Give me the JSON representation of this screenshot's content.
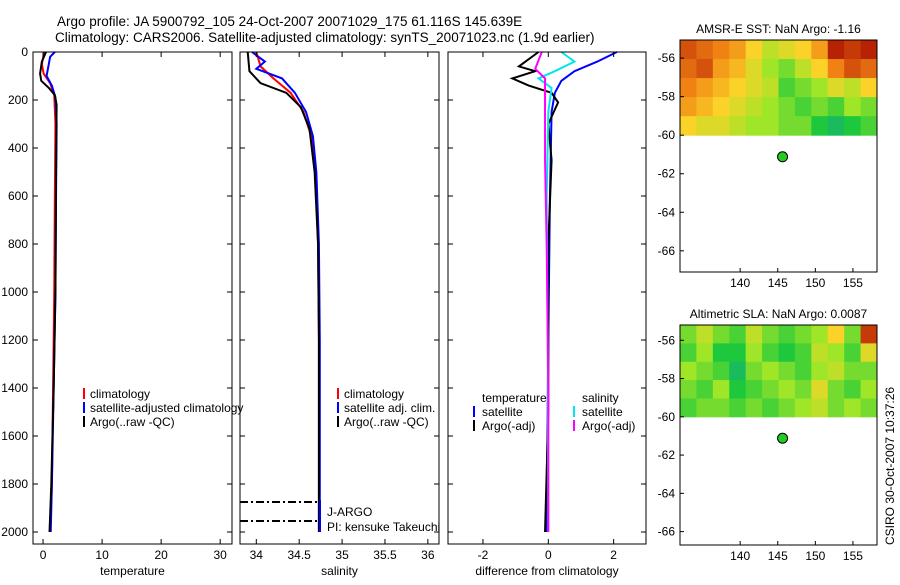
{
  "title_line1": "Argo profile: JA 5900792_105 24-Oct-2007 20071029_175 61.116S 145.639E",
  "title_line2": "Climatology: CARS2006. Satellite-adjusted climatology: synTS_20071023.nc (1.9d earlier)",
  "footer_stamp": "CSIRO 30-Oct-2007 10:37:26",
  "float_info": {
    "program": "J-ARGO",
    "pi": "PI: kensuke Takeuchi"
  },
  "colors": {
    "climatology": "#ff0000",
    "satellite": "#0000ff",
    "argo": "#000000",
    "sal_satellite": "#00e5ee",
    "sal_argo": "#ff00ff",
    "dot": "#22cc22"
  },
  "chart_data": [
    {
      "type": "line",
      "name": "temperature",
      "xlabel": "temperature",
      "ylabel": "depth",
      "xlim": [
        -1.7,
        32
      ],
      "ylim": [
        2050,
        0
      ],
      "xticks": [
        "0",
        "10",
        "20",
        "30"
      ],
      "xtick_values": [
        0,
        10,
        20,
        30
      ],
      "yticks": [
        "0",
        "200",
        "400",
        "600",
        "800",
        "1000",
        "1200",
        "1400",
        "1600",
        "1800",
        "2000"
      ],
      "legend": [
        "climatology",
        "satellite-adjusted climatology",
        "Argo(..raw -QC)"
      ],
      "series": [
        {
          "name": "climatology",
          "color": "#ff0000",
          "points": [
            [
              0.2,
              0
            ],
            [
              -0.2,
              50
            ],
            [
              0.1,
              90
            ],
            [
              1.2,
              130
            ],
            [
              1.9,
              180
            ],
            [
              2.1,
              300
            ],
            [
              2.0,
              600
            ],
            [
              1.9,
              1000
            ],
            [
              1.7,
              1400
            ],
            [
              1.5,
              1800
            ],
            [
              1.4,
              1870
            ]
          ]
        },
        {
          "name": "satellite-adjusted climatology",
          "color": "#0000ff",
          "points": [
            [
              2.0,
              0
            ],
            [
              1.2,
              20
            ],
            [
              0.9,
              60
            ],
            [
              0.6,
              100
            ],
            [
              1.5,
              140
            ],
            [
              2.1,
              190
            ],
            [
              2.3,
              300
            ],
            [
              2.2,
              600
            ],
            [
              2.1,
              1000
            ],
            [
              1.8,
              1400
            ],
            [
              1.5,
              1800
            ],
            [
              1.3,
              2000
            ]
          ]
        },
        {
          "name": "Argo(..raw -QC)",
          "color": "#000000",
          "points": [
            [
              0.5,
              0
            ],
            [
              -0.2,
              40
            ],
            [
              -0.5,
              90
            ],
            [
              -0.3,
              120
            ],
            [
              1.0,
              150
            ],
            [
              2.0,
              180
            ],
            [
              2.3,
              220
            ],
            [
              2.2,
              500
            ],
            [
              2.1,
              1000
            ],
            [
              1.8,
              1400
            ],
            [
              1.4,
              1800
            ],
            [
              1.1,
              2000
            ]
          ]
        }
      ]
    },
    {
      "type": "line",
      "name": "salinity",
      "xlabel": "salinity",
      "ylabel": "",
      "xlim": [
        33.81,
        36.13
      ],
      "ylim": [
        2050,
        0
      ],
      "xticks": [
        "34",
        "34.5",
        "35",
        "35.5",
        "36"
      ],
      "xtick_values": [
        34,
        34.5,
        35,
        35.5,
        36
      ],
      "legend": [
        "climatology",
        "satellite adj. clim.",
        "Argo(..raw -QC)"
      ],
      "series": [
        {
          "name": "climatology",
          "color": "#ff0000",
          "points": [
            [
              34.0,
              0
            ],
            [
              34.05,
              60
            ],
            [
              34.2,
              110
            ],
            [
              34.4,
              170
            ],
            [
              34.55,
              250
            ],
            [
              34.64,
              350
            ],
            [
              34.69,
              500
            ],
            [
              34.72,
              800
            ],
            [
              34.73,
              1200
            ],
            [
              34.73,
              2000
            ]
          ]
        },
        {
          "name": "satellite adj. clim.",
          "color": "#0000ff",
          "points": [
            [
              33.95,
              0
            ],
            [
              34.1,
              40
            ],
            [
              34.0,
              70
            ],
            [
              34.3,
              110
            ],
            [
              34.45,
              170
            ],
            [
              34.58,
              250
            ],
            [
              34.66,
              350
            ],
            [
              34.7,
              500
            ],
            [
              34.73,
              800
            ],
            [
              34.74,
              1200
            ],
            [
              34.74,
              2000
            ]
          ]
        },
        {
          "name": "Argo(..raw -QC)",
          "color": "#000000",
          "points": [
            [
              33.9,
              0
            ],
            [
              33.92,
              80
            ],
            [
              34.05,
              130
            ],
            [
              34.35,
              170
            ],
            [
              34.52,
              230
            ],
            [
              34.62,
              320
            ],
            [
              34.68,
              500
            ],
            [
              34.72,
              800
            ],
            [
              34.73,
              1200
            ],
            [
              34.73,
              2000
            ]
          ]
        }
      ]
    },
    {
      "type": "line",
      "name": "difference",
      "xlabel": "difference from climatology",
      "ylabel": "",
      "xlim": [
        -3.07,
        2.99
      ],
      "ylim": [
        2050,
        0
      ],
      "xticks": [
        "-2",
        "0",
        "2"
      ],
      "xtick_values": [
        -2,
        0,
        2
      ],
      "legend_headers": [
        "temperature",
        "salinity"
      ],
      "legend": [
        "satellite",
        "Argo(-adj)",
        "satellite",
        "Argo(-adj)"
      ],
      "series": [
        {
          "name": "temperature satellite",
          "color": "#0000ff",
          "points": [
            [
              2.1,
              0
            ],
            [
              1.5,
              40
            ],
            [
              0.8,
              80
            ],
            [
              0.4,
              120
            ],
            [
              0.2,
              170
            ],
            [
              0.1,
              250
            ],
            [
              0.05,
              600
            ],
            [
              0.0,
              1200
            ],
            [
              -0.05,
              2000
            ]
          ]
        },
        {
          "name": "temperature Argo(-adj)",
          "color": "#000000",
          "points": [
            [
              -0.3,
              0
            ],
            [
              -0.9,
              60
            ],
            [
              -0.4,
              80
            ],
            [
              -1.1,
              110
            ],
            [
              -0.6,
              140
            ],
            [
              0.1,
              170
            ],
            [
              0.3,
              210
            ],
            [
              0.0,
              300
            ],
            [
              0.1,
              450
            ],
            [
              0.0,
              800
            ],
            [
              0.0,
              1500
            ],
            [
              -0.1,
              2000
            ]
          ]
        },
        {
          "name": "salinity satellite",
          "color": "#00e5ee",
          "points": [
            [
              0.4,
              0
            ],
            [
              0.8,
              40
            ],
            [
              0.2,
              80
            ],
            [
              -0.3,
              110
            ],
            [
              0.1,
              150
            ],
            [
              0.0,
              250
            ],
            [
              -0.05,
              600
            ],
            [
              -0.02,
              1200
            ],
            [
              0.0,
              2000
            ]
          ]
        },
        {
          "name": "salinity Argo(-adj)",
          "color": "#ff00ff",
          "points": [
            [
              -0.2,
              0
            ],
            [
              -0.4,
              70
            ],
            [
              -0.1,
              110
            ],
            [
              -0.1,
              200
            ],
            [
              -0.1,
              450
            ],
            [
              -0.05,
              800
            ],
            [
              0.0,
              1400
            ],
            [
              0.0,
              2000
            ]
          ]
        }
      ]
    },
    {
      "type": "heatmap",
      "name": "sst-map",
      "title": "AMSR-E SST: NaN Argo: -1.16",
      "xlim": [
        132,
        158.2
      ],
      "ylim": [
        -67.1,
        -55.06
      ],
      "data_lat_range": [
        -60,
        -55.06
      ],
      "xticks": [
        "140",
        "145",
        "150",
        "155"
      ],
      "xtick_values": [
        140,
        145,
        150,
        155
      ],
      "yticks": [
        "-56",
        "-58",
        "-60",
        "-62",
        "-64",
        "-66"
      ],
      "ytick_values": [
        -56,
        -58,
        -60,
        -62,
        -64,
        -66
      ],
      "marker": {
        "lon": 145.64,
        "lat": -61.12
      },
      "grid": [
        [
          0.85,
          0.8,
          0.75,
          0.7,
          0.6,
          0.5,
          0.55,
          0.6,
          0.7,
          0.95,
          0.9,
          0.95
        ],
        [
          0.8,
          0.85,
          0.7,
          0.65,
          0.55,
          0.45,
          0.4,
          0.5,
          0.6,
          0.75,
          0.85,
          0.8
        ],
        [
          0.75,
          0.7,
          0.65,
          0.6,
          0.55,
          0.5,
          0.35,
          0.4,
          0.45,
          0.55,
          0.5,
          0.6
        ],
        [
          0.7,
          0.65,
          0.6,
          0.55,
          0.5,
          0.45,
          0.4,
          0.35,
          0.4,
          0.35,
          0.45,
          0.4
        ],
        [
          0.6,
          0.55,
          0.55,
          0.5,
          0.45,
          0.45,
          0.4,
          0.4,
          0.3,
          0.25,
          0.3,
          0.35
        ]
      ]
    },
    {
      "type": "heatmap",
      "name": "sla-map",
      "title": "Altimetric SLA: NaN Argo: 0.0087",
      "xlim": [
        132,
        158.2
      ],
      "ylim": [
        -66.7,
        -55.2
      ],
      "data_lat_range": [
        -60,
        -55.2
      ],
      "xticks": [
        "140",
        "145",
        "150",
        "155"
      ],
      "xtick_values": [
        140,
        145,
        150,
        155
      ],
      "yticks": [
        "-56",
        "-58",
        "-60",
        "-62",
        "-64",
        "-66"
      ],
      "ytick_values": [
        -56,
        -58,
        -60,
        -62,
        -64,
        -66
      ],
      "marker": {
        "lon": 145.64,
        "lat": -61.12
      },
      "grid": [
        [
          0.4,
          0.5,
          0.4,
          0.35,
          0.5,
          0.4,
          0.35,
          0.4,
          0.45,
          0.6,
          0.4,
          0.9
        ],
        [
          0.35,
          0.45,
          0.3,
          0.3,
          0.45,
          0.35,
          0.3,
          0.35,
          0.5,
          0.45,
          0.35,
          0.55
        ],
        [
          0.45,
          0.4,
          0.35,
          0.25,
          0.4,
          0.45,
          0.4,
          0.35,
          0.45,
          0.5,
          0.4,
          0.4
        ],
        [
          0.4,
          0.35,
          0.45,
          0.3,
          0.35,
          0.4,
          0.45,
          0.4,
          0.55,
          0.4,
          0.35,
          0.45
        ],
        [
          0.35,
          0.4,
          0.4,
          0.35,
          0.4,
          0.35,
          0.4,
          0.45,
          0.5,
          0.4,
          0.45,
          0.4
        ]
      ]
    }
  ]
}
